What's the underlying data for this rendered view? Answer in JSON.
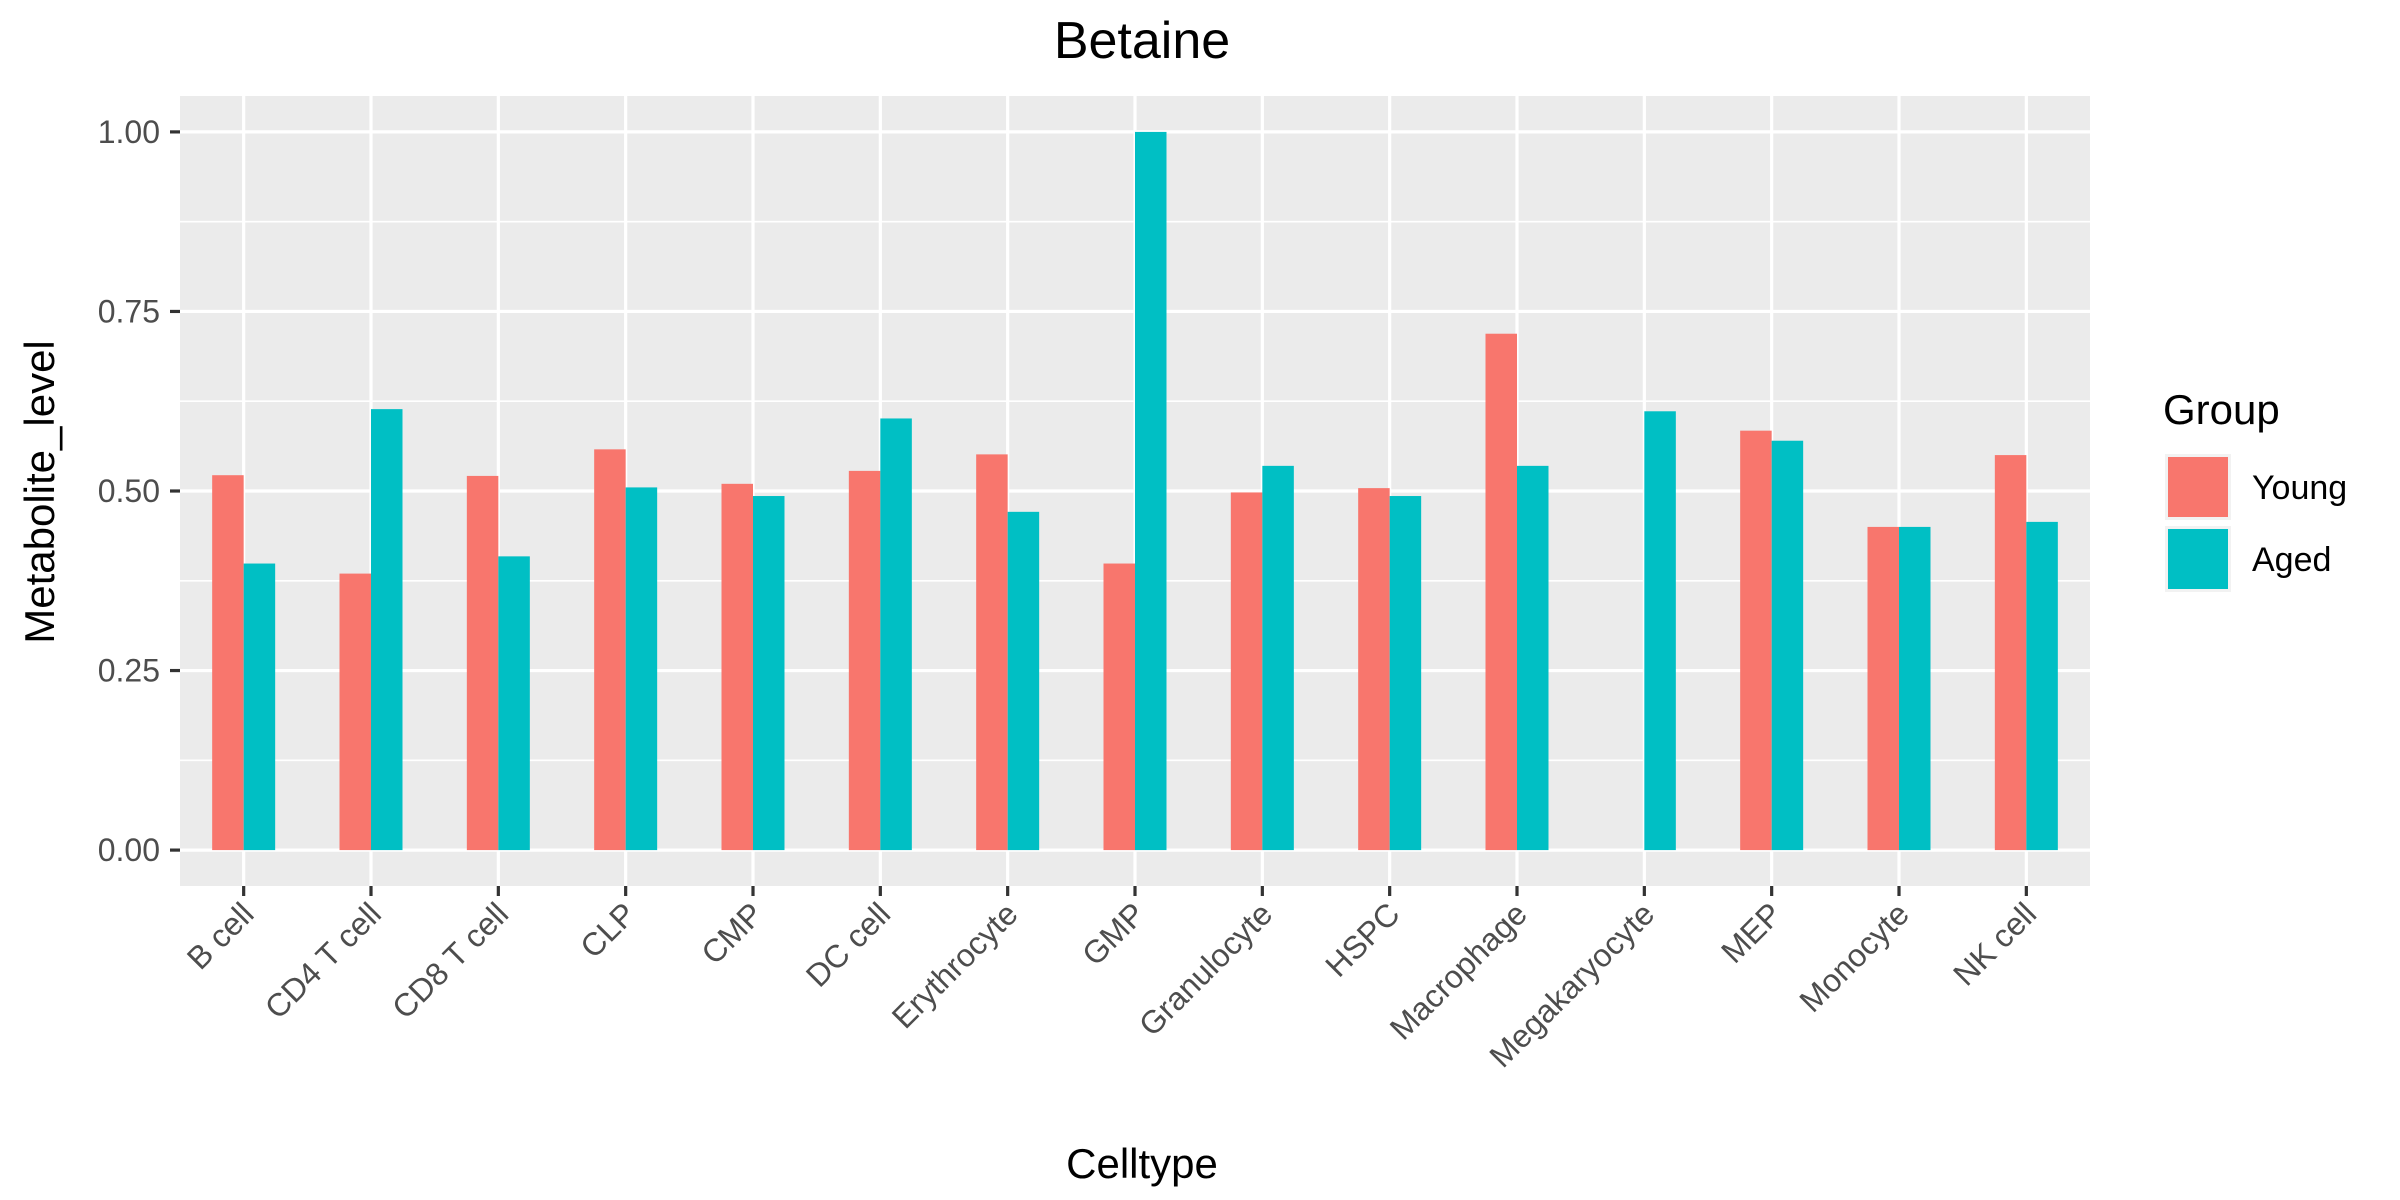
{
  "chart_data": {
    "type": "bar",
    "title": "Betaine",
    "xlabel": "Celltype",
    "ylabel": "Metabolite_level",
    "categories": [
      "B cell",
      "CD4 T cell",
      "CD8 T cell",
      "CLP",
      "CMP",
      "DC cell",
      "Erythrocyte",
      "GMP",
      "Granulocyte",
      "HSPC",
      "Macrophage",
      "Megakaryocyte",
      "MEP",
      "Monocyte",
      "NK cell"
    ],
    "series": [
      {
        "name": "Young",
        "color": "#F8766D",
        "values": [
          0.522,
          0.385,
          0.521,
          0.558,
          0.51,
          0.528,
          0.551,
          0.399,
          0.498,
          0.504,
          0.719,
          null,
          0.584,
          0.45,
          0.55
        ]
      },
      {
        "name": "Aged",
        "color": "#00BFC4",
        "values": [
          0.399,
          0.614,
          0.409,
          0.505,
          0.493,
          0.601,
          0.471,
          1.0,
          0.535,
          0.493,
          0.535,
          0.611,
          0.57,
          0.45,
          0.457
        ]
      }
    ],
    "ylim": [
      -0.05,
      1.05
    ],
    "yticks": [
      0.0,
      0.25,
      0.5,
      0.75,
      1.0
    ],
    "ytick_labels": [
      "0.00",
      "0.25",
      "0.50",
      "0.75",
      "1.00"
    ],
    "grid": true,
    "legend": {
      "title": "Group",
      "placement": "right"
    }
  }
}
